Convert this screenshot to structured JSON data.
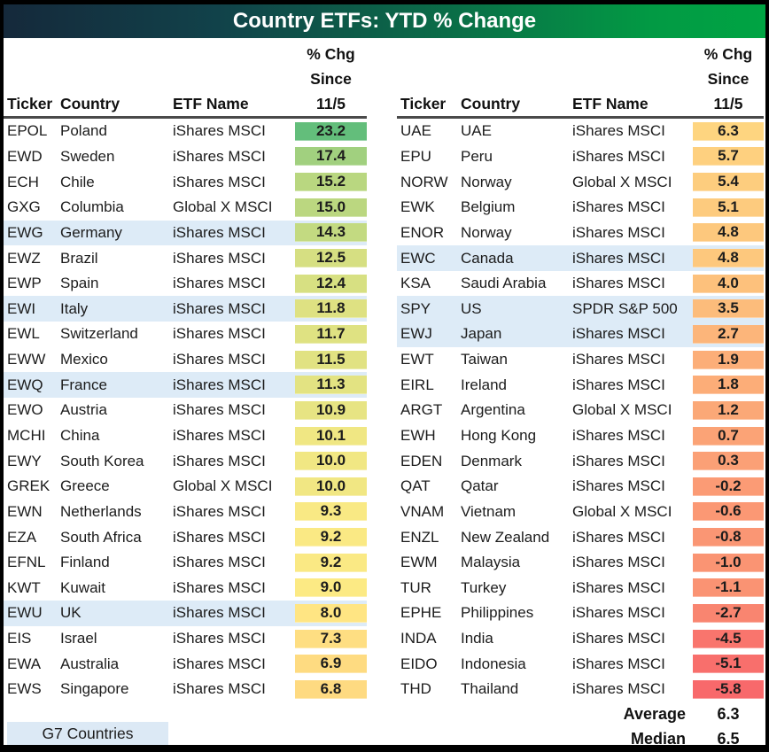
{
  "title": "Country ETFs: YTD % Change",
  "header": {
    "ticker": "Ticker",
    "country": "Country",
    "etf_name": "ETF Name",
    "pct_line1": "% Chg",
    "pct_line2": "Since",
    "pct_line3": "11/5"
  },
  "summary": {
    "average_label": "Average",
    "average_value": "6.3",
    "median_label": "Median",
    "median_value": "6.5"
  },
  "legend": {
    "g7_label": "G7 Countries"
  },
  "colors": {
    "title_gradient_left": "#15293B",
    "title_gradient_right": "#00A443",
    "g7_highlight": "#DDEBF7",
    "scale_min_color": "#F8696B",
    "scale_mid_color": "#FFEB84",
    "scale_max_color": "#63BE7B",
    "header_rule": "#4a4a4a"
  },
  "chart_data": {
    "type": "table",
    "title": "Country ETFs: YTD % Change",
    "columns": [
      "Ticker",
      "Country",
      "ETF Name",
      "% Chg Since 11/5"
    ],
    "color_scale": {
      "min": {
        "value": -5.8,
        "color": "#F8696B"
      },
      "mid": {
        "value": 8.7,
        "color": "#FFEB84"
      },
      "max": {
        "value": 23.2,
        "color": "#63BE7B"
      }
    },
    "g7_highlight_color": "#DDEBF7",
    "left_table": [
      {
        "ticker": "EPOL",
        "country": "Poland",
        "etf": "iShares MSCI",
        "pct": 23.2,
        "g7": false
      },
      {
        "ticker": "EWD",
        "country": "Sweden",
        "etf": "iShares MSCI",
        "pct": 17.4,
        "g7": false
      },
      {
        "ticker": "ECH",
        "country": "Chile",
        "etf": "iShares MSCI",
        "pct": 15.2,
        "g7": false
      },
      {
        "ticker": "GXG",
        "country": "Columbia",
        "etf": "Global X MSCI",
        "pct": 15.0,
        "g7": false
      },
      {
        "ticker": "EWG",
        "country": "Germany",
        "etf": "iShares MSCI",
        "pct": 14.3,
        "g7": true
      },
      {
        "ticker": "EWZ",
        "country": "Brazil",
        "etf": "iShares MSCI",
        "pct": 12.5,
        "g7": false
      },
      {
        "ticker": "EWP",
        "country": "Spain",
        "etf": "iShares MSCI",
        "pct": 12.4,
        "g7": false
      },
      {
        "ticker": "EWI",
        "country": "Italy",
        "etf": "iShares MSCI",
        "pct": 11.8,
        "g7": true
      },
      {
        "ticker": "EWL",
        "country": "Switzerland",
        "etf": "iShares MSCI",
        "pct": 11.7,
        "g7": false
      },
      {
        "ticker": "EWW",
        "country": "Mexico",
        "etf": "iShares MSCI",
        "pct": 11.5,
        "g7": false
      },
      {
        "ticker": "EWQ",
        "country": "France",
        "etf": "iShares MSCI",
        "pct": 11.3,
        "g7": true
      },
      {
        "ticker": "EWO",
        "country": "Austria",
        "etf": "iShares MSCI",
        "pct": 10.9,
        "g7": false
      },
      {
        "ticker": "MCHI",
        "country": "China",
        "etf": "iShares MSCI",
        "pct": 10.1,
        "g7": false
      },
      {
        "ticker": "EWY",
        "country": "South Korea",
        "etf": "iShares MSCI",
        "pct": 10.0,
        "g7": false
      },
      {
        "ticker": "GREK",
        "country": "Greece",
        "etf": "Global X MSCI",
        "pct": 10.0,
        "g7": false
      },
      {
        "ticker": "EWN",
        "country": "Netherlands",
        "etf": "iShares MSCI",
        "pct": 9.3,
        "g7": false
      },
      {
        "ticker": "EZA",
        "country": "South Africa",
        "etf": "iShares MSCI",
        "pct": 9.2,
        "g7": false
      },
      {
        "ticker": "EFNL",
        "country": "Finland",
        "etf": "iShares MSCI",
        "pct": 9.2,
        "g7": false
      },
      {
        "ticker": "KWT",
        "country": "Kuwait",
        "etf": "iShares MSCI",
        "pct": 9.0,
        "g7": false
      },
      {
        "ticker": "EWU",
        "country": "UK",
        "etf": "iShares MSCI",
        "pct": 8.0,
        "g7": true
      },
      {
        "ticker": "EIS",
        "country": "Israel",
        "etf": "iShares MSCI",
        "pct": 7.3,
        "g7": false
      },
      {
        "ticker": "EWA",
        "country": "Australia",
        "etf": "iShares MSCI",
        "pct": 6.9,
        "g7": false
      },
      {
        "ticker": "EWS",
        "country": "Singapore",
        "etf": "iShares MSCI",
        "pct": 6.8,
        "g7": false
      }
    ],
    "right_table": [
      {
        "ticker": "UAE",
        "country": "UAE",
        "etf": "iShares MSCI",
        "pct": 6.3,
        "g7": false
      },
      {
        "ticker": "EPU",
        "country": "Peru",
        "etf": "iShares MSCI",
        "pct": 5.7,
        "g7": false
      },
      {
        "ticker": "NORW",
        "country": "Norway",
        "etf": "Global X MSCI",
        "pct": 5.4,
        "g7": false
      },
      {
        "ticker": "EWK",
        "country": "Belgium",
        "etf": "iShares MSCI",
        "pct": 5.1,
        "g7": false
      },
      {
        "ticker": "ENOR",
        "country": "Norway",
        "etf": "iShares MSCI",
        "pct": 4.8,
        "g7": false
      },
      {
        "ticker": "EWC",
        "country": "Canada",
        "etf": "iShares MSCI",
        "pct": 4.8,
        "g7": true
      },
      {
        "ticker": "KSA",
        "country": "Saudi Arabia",
        "etf": "iShares MSCI",
        "pct": 4.0,
        "g7": false
      },
      {
        "ticker": "SPY",
        "country": "US",
        "etf": "SPDR S&P 500",
        "pct": 3.5,
        "g7": true
      },
      {
        "ticker": "EWJ",
        "country": "Japan",
        "etf": "iShares MSCI",
        "pct": 2.7,
        "g7": true
      },
      {
        "ticker": "EWT",
        "country": "Taiwan",
        "etf": "iShares MSCI",
        "pct": 1.9,
        "g7": false
      },
      {
        "ticker": "EIRL",
        "country": "Ireland",
        "etf": "iShares MSCI",
        "pct": 1.8,
        "g7": false
      },
      {
        "ticker": "ARGT",
        "country": "Argentina",
        "etf": "Global X MSCI",
        "pct": 1.2,
        "g7": false
      },
      {
        "ticker": "EWH",
        "country": "Hong Kong",
        "etf": "iShares MSCI",
        "pct": 0.7,
        "g7": false
      },
      {
        "ticker": "EDEN",
        "country": "Denmark",
        "etf": "iShares MSCI",
        "pct": 0.3,
        "g7": false
      },
      {
        "ticker": "QAT",
        "country": "Qatar",
        "etf": "iShares MSCI",
        "pct": -0.2,
        "g7": false
      },
      {
        "ticker": "VNAM",
        "country": "Vietnam",
        "etf": "Global X MSCI",
        "pct": -0.6,
        "g7": false
      },
      {
        "ticker": "ENZL",
        "country": "New Zealand",
        "etf": "iShares MSCI",
        "pct": -0.8,
        "g7": false
      },
      {
        "ticker": "EWM",
        "country": "Malaysia",
        "etf": "iShares MSCI",
        "pct": -1.0,
        "g7": false
      },
      {
        "ticker": "TUR",
        "country": "Turkey",
        "etf": "iShares MSCI",
        "pct": -1.1,
        "g7": false
      },
      {
        "ticker": "EPHE",
        "country": "Philippines",
        "etf": "iShares MSCI",
        "pct": -2.7,
        "g7": false
      },
      {
        "ticker": "INDA",
        "country": "India",
        "etf": "iShares MSCI",
        "pct": -4.5,
        "g7": false
      },
      {
        "ticker": "EIDO",
        "country": "Indonesia",
        "etf": "iShares MSCI",
        "pct": -5.1,
        "g7": false
      },
      {
        "ticker": "THD",
        "country": "Thailand",
        "etf": "iShares MSCI",
        "pct": -5.8,
        "g7": false
      }
    ]
  }
}
